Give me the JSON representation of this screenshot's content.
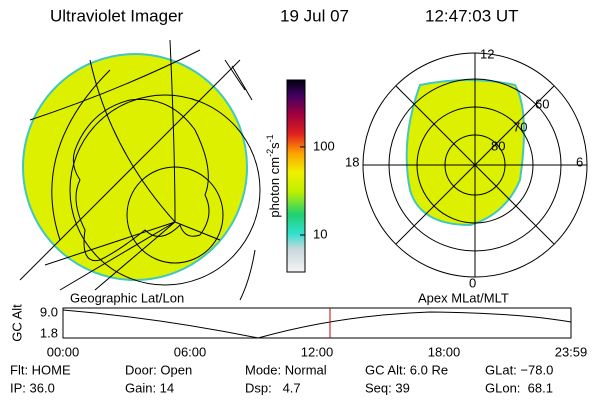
{
  "header": {
    "title": "Ultraviolet Imager",
    "date": "19 Jul 07",
    "time": "12:47:03 UT"
  },
  "colorbar": {
    "label": [
      "photon cm",
      "-2",
      "s",
      "-1"
    ],
    "log": true,
    "range": [
      3.8,
      575
    ],
    "ticks": [
      100,
      10
    ]
  },
  "left_panel": {
    "caption": "Geographic Lat/Lon"
  },
  "right_panel": {
    "caption": "Apex MLat/MLT",
    "mlt_labels": [
      "12",
      "18",
      "6",
      "0"
    ],
    "lat_labels": [
      "60",
      "70",
      "80"
    ]
  },
  "altitude_plot": {
    "ylabel": "GC Alt",
    "yticks": [
      "9.0",
      "1.8"
    ],
    "xticks": [
      "00:00",
      "06:00",
      "12:00",
      "18:00",
      "23:59"
    ]
  },
  "status": {
    "rows": [
      [
        "Flt: HOME",
        "Door: Open",
        "Mode: Normal",
        "GC Alt: 6.0 Re",
        "GLat: −78.0"
      ],
      [
        "IP: 36.0",
        "Gain: 14",
        "Dsp:   4.7",
        "Seq: 39",
        "GLon:  68.1"
      ]
    ]
  }
}
